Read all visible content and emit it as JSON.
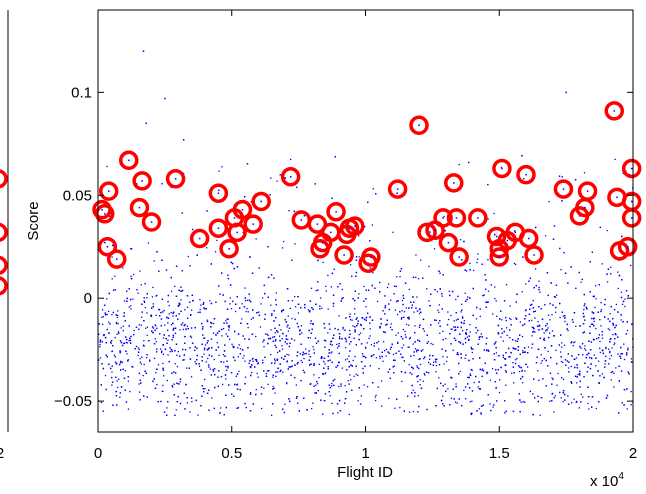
{
  "chart_data": {
    "type": "scatter",
    "title": "",
    "xlabel": "Flight ID",
    "ylabel": "Score",
    "xlim": [
      0,
      20000
    ],
    "ylim": [
      -0.065,
      0.14
    ],
    "x_ticks": [
      0,
      0.5,
      1,
      1.5,
      2
    ],
    "x_tick_labels": [
      "0",
      "0.5",
      "1",
      "1.5",
      "2"
    ],
    "x_exponent_label": "x 10",
    "x_exponent_power": "4",
    "y_ticks": [
      -0.05,
      0,
      0.05,
      0.1
    ],
    "y_tick_labels": [
      "−0.05",
      "0",
      "0.05",
      "0.1"
    ],
    "grid": false,
    "left_panel_partial": {
      "x_tick_label": "2",
      "circle_scores": [
        0.058,
        0.032,
        0.016,
        0.006
      ]
    },
    "series": [
      {
        "marker": "dot",
        "color": "#0000ff",
        "description_count": 20000,
        "bulk_mean": -0.022,
        "bulk_spread": 0.018,
        "notable_points": [
          {
            "x": 1700,
            "y": 0.12
          },
          {
            "x": 2500,
            "y": 0.097
          },
          {
            "x": 1800,
            "y": 0.085
          },
          {
            "x": 17500,
            "y": 0.1
          },
          {
            "x": 3200,
            "y": 0.077
          }
        ]
      },
      {
        "marker": "circle",
        "color": "#ff0000",
        "points": [
          {
            "x": 150,
            "y": 0.043
          },
          {
            "x": 250,
            "y": 0.041
          },
          {
            "x": 400,
            "y": 0.052
          },
          {
            "x": 350,
            "y": 0.025
          },
          {
            "x": 700,
            "y": 0.019
          },
          {
            "x": 1150,
            "y": 0.067
          },
          {
            "x": 1650,
            "y": 0.057
          },
          {
            "x": 1550,
            "y": 0.044
          },
          {
            "x": 2000,
            "y": 0.037
          },
          {
            "x": 2900,
            "y": 0.058
          },
          {
            "x": 3800,
            "y": 0.029
          },
          {
            "x": 4500,
            "y": 0.051
          },
          {
            "x": 4500,
            "y": 0.034
          },
          {
            "x": 4900,
            "y": 0.024
          },
          {
            "x": 5100,
            "y": 0.039
          },
          {
            "x": 5200,
            "y": 0.032
          },
          {
            "x": 5400,
            "y": 0.043
          },
          {
            "x": 5800,
            "y": 0.036
          },
          {
            "x": 6100,
            "y": 0.047
          },
          {
            "x": 7200,
            "y": 0.059
          },
          {
            "x": 7600,
            "y": 0.038
          },
          {
            "x": 8200,
            "y": 0.036
          },
          {
            "x": 8300,
            "y": 0.024
          },
          {
            "x": 8400,
            "y": 0.027
          },
          {
            "x": 8700,
            "y": 0.032
          },
          {
            "x": 8900,
            "y": 0.042
          },
          {
            "x": 9200,
            "y": 0.021
          },
          {
            "x": 9300,
            "y": 0.031
          },
          {
            "x": 9400,
            "y": 0.034
          },
          {
            "x": 9600,
            "y": 0.035
          },
          {
            "x": 10100,
            "y": 0.017
          },
          {
            "x": 10200,
            "y": 0.02
          },
          {
            "x": 11200,
            "y": 0.053
          },
          {
            "x": 12000,
            "y": 0.084
          },
          {
            "x": 12300,
            "y": 0.032
          },
          {
            "x": 12600,
            "y": 0.033
          },
          {
            "x": 12900,
            "y": 0.039
          },
          {
            "x": 13100,
            "y": 0.027
          },
          {
            "x": 13300,
            "y": 0.056
          },
          {
            "x": 13400,
            "y": 0.039
          },
          {
            "x": 13500,
            "y": 0.02
          },
          {
            "x": 14200,
            "y": 0.039
          },
          {
            "x": 14900,
            "y": 0.03
          },
          {
            "x": 15000,
            "y": 0.024
          },
          {
            "x": 15000,
            "y": 0.02
          },
          {
            "x": 15100,
            "y": 0.063
          },
          {
            "x": 15300,
            "y": 0.028
          },
          {
            "x": 15600,
            "y": 0.032
          },
          {
            "x": 16000,
            "y": 0.06
          },
          {
            "x": 16100,
            "y": 0.029
          },
          {
            "x": 16300,
            "y": 0.021
          },
          {
            "x": 17400,
            "y": 0.053
          },
          {
            "x": 18000,
            "y": 0.04
          },
          {
            "x": 18200,
            "y": 0.044
          },
          {
            "x": 18300,
            "y": 0.052
          },
          {
            "x": 19300,
            "y": 0.091
          },
          {
            "x": 19400,
            "y": 0.049
          },
          {
            "x": 19500,
            "y": 0.023
          },
          {
            "x": 19800,
            "y": 0.025
          },
          {
            "x": 19950,
            "y": 0.063
          },
          {
            "x": 19950,
            "y": 0.047
          },
          {
            "x": 19950,
            "y": 0.039
          }
        ]
      }
    ]
  }
}
